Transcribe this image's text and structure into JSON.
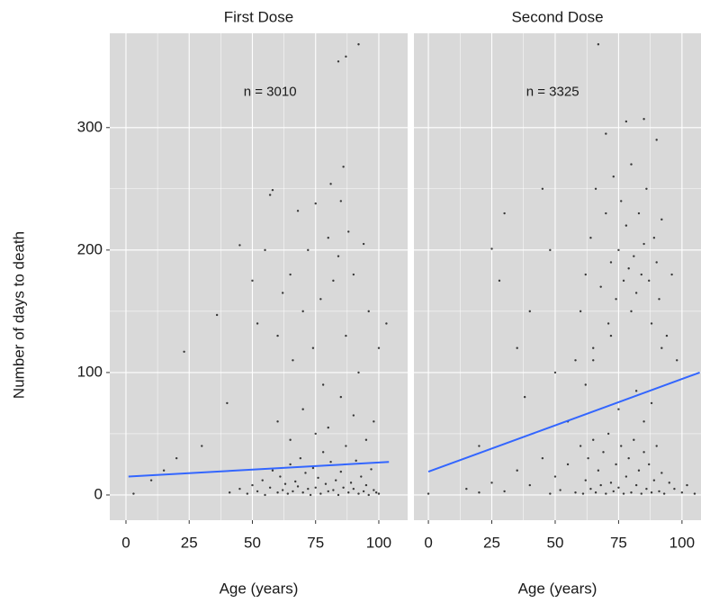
{
  "y_label": "Number of days to death",
  "chart_data": [
    {
      "type": "scatter",
      "title": "First Dose",
      "x_label": "Age (years)",
      "annotation": {
        "text": "n = 3010",
        "x": 57,
        "y": 329
      },
      "xlim": [
        -6.4,
        111.4
      ],
      "xticks": [
        0,
        25,
        50,
        75,
        100
      ],
      "ylim": [
        -20.6,
        377
      ],
      "yticks": [
        0,
        100,
        200,
        300
      ],
      "grid": true,
      "color": "#000000",
      "x": [
        41,
        45,
        48,
        50,
        52,
        54,
        55,
        57,
        58,
        60,
        61,
        62,
        63,
        64,
        65,
        66,
        67,
        68,
        69,
        70,
        71,
        72,
        73,
        74,
        75,
        76,
        77,
        78,
        79,
        80,
        81,
        82,
        83,
        84,
        85,
        86,
        87,
        88,
        89,
        90,
        91,
        92,
        93,
        94,
        95,
        96,
        97,
        98,
        99,
        100,
        50,
        52,
        55,
        57,
        58,
        60,
        62,
        65,
        66,
        68,
        70,
        72,
        74,
        75,
        77,
        78,
        80,
        81,
        82,
        84,
        85,
        86,
        87,
        88,
        90,
        92,
        94,
        96,
        100,
        103,
        84,
        87,
        92,
        23,
        36,
        45,
        40,
        30,
        20,
        15,
        10,
        3,
        60,
        70,
        80,
        90,
        65,
        75,
        85,
        95,
        98
      ],
      "values": [
        2,
        5,
        1,
        8,
        3,
        12,
        0,
        6,
        20,
        2,
        15,
        4,
        9,
        1,
        25,
        3,
        11,
        7,
        30,
        2,
        18,
        5,
        0,
        22,
        6,
        14,
        1,
        35,
        9,
        3,
        27,
        4,
        12,
        0,
        19,
        6,
        40,
        2,
        10,
        5,
        28,
        1,
        15,
        3,
        8,
        0,
        21,
        4,
        2,
        1,
        175,
        140,
        200,
        245,
        249,
        130,
        165,
        180,
        110,
        232,
        150,
        200,
        120,
        238,
        160,
        90,
        210,
        254,
        175,
        195,
        240,
        268,
        130,
        215,
        180,
        100,
        205,
        150,
        120,
        140,
        354,
        358,
        368,
        117,
        147,
        204,
        75,
        40,
        30,
        20,
        12,
        1,
        60,
        70,
        55,
        65,
        45,
        50,
        80,
        45,
        60
      ],
      "fit": {
        "x": [
          1,
          104
        ],
        "values": [
          15,
          27
        ],
        "color": "#3366ff"
      }
    },
    {
      "type": "scatter",
      "title": "Second Dose",
      "x_label": "Age (years)",
      "annotation": {
        "text": "n = 3325",
        "x": 49,
        "y": 329
      },
      "xlim": [
        -5.7,
        107.5
      ],
      "xticks": [
        0,
        25,
        50,
        75,
        100
      ],
      "ylim": [
        -20.6,
        377
      ],
      "yticks": [
        0,
        100,
        200,
        300
      ],
      "grid": true,
      "color": "#000000",
      "x": [
        0,
        15,
        20,
        25,
        30,
        35,
        40,
        45,
        48,
        50,
        52,
        55,
        58,
        60,
        61,
        62,
        63,
        64,
        65,
        66,
        67,
        68,
        69,
        70,
        71,
        72,
        73,
        74,
        75,
        76,
        77,
        78,
        79,
        80,
        81,
        82,
        83,
        84,
        85,
        86,
        87,
        88,
        89,
        90,
        91,
        92,
        93,
        95,
        97,
        100,
        102,
        105,
        60,
        62,
        64,
        65,
        66,
        68,
        70,
        71,
        72,
        73,
        74,
        75,
        76,
        77,
        78,
        79,
        80,
        80,
        81,
        82,
        83,
        84,
        85,
        86,
        87,
        88,
        89,
        90,
        91,
        92,
        94,
        96,
        98,
        67,
        85,
        78,
        70,
        90,
        45,
        30,
        25,
        40,
        50,
        55,
        35,
        20,
        28,
        38,
        48,
        58,
        62,
        72,
        82,
        92,
        75,
        85,
        65,
        88
      ],
      "values": [
        1,
        5,
        2,
        10,
        3,
        20,
        8,
        30,
        1,
        15,
        4,
        25,
        2,
        40,
        1,
        12,
        30,
        5,
        45,
        2,
        20,
        8,
        35,
        1,
        50,
        10,
        3,
        25,
        6,
        40,
        1,
        15,
        30,
        2,
        45,
        8,
        20,
        1,
        35,
        5,
        25,
        2,
        12,
        40,
        3,
        18,
        1,
        10,
        5,
        2,
        8,
        1,
        150,
        180,
        210,
        120,
        250,
        170,
        230,
        140,
        190,
        260,
        160,
        200,
        240,
        175,
        220,
        185,
        270,
        150,
        195,
        165,
        230,
        180,
        205,
        250,
        175,
        140,
        210,
        190,
        160,
        225,
        130,
        180,
        110,
        368,
        307,
        305,
        295,
        290,
        250,
        230,
        201,
        150,
        100,
        60,
        120,
        40,
        175,
        80,
        200,
        110,
        90,
        130,
        85,
        120,
        70,
        60,
        110,
        75
      ],
      "fit": {
        "x": [
          0,
          107
        ],
        "values": [
          19,
          100
        ],
        "color": "#3366ff"
      }
    }
  ]
}
